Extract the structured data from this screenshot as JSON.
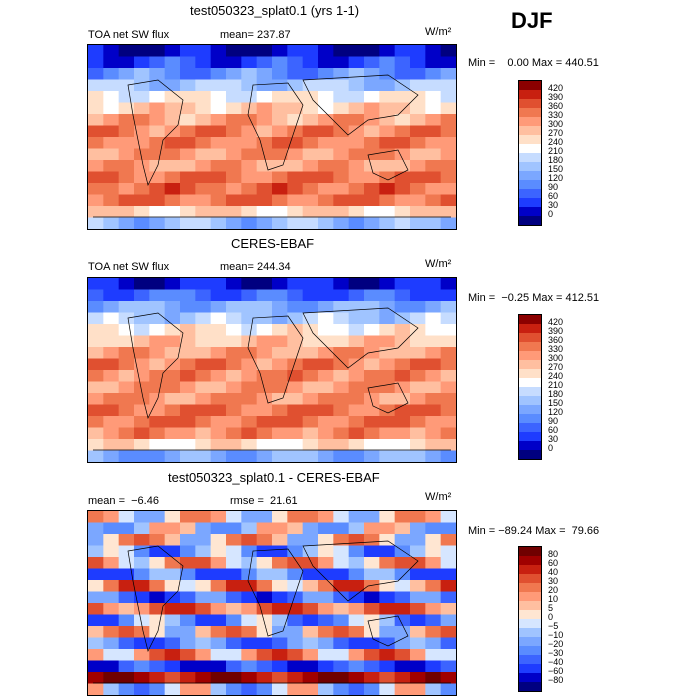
{
  "season": "DJF",
  "panels": [
    {
      "title": "test050323_splat0.1 (yrs 1-1)",
      "variable": "TOA net SW flux",
      "mean_label": "mean= 237.87",
      "units": "W/m²",
      "stats": "Min =    0.00 Max = 440.51",
      "colorbar_ticks": [
        "420",
        "390",
        "360",
        "330",
        "300",
        "270",
        "240",
        "210",
        "180",
        "150",
        "120",
        "90",
        "60",
        "30",
        "0"
      ]
    },
    {
      "title": "CERES-EBAF",
      "variable": "TOA net SW flux",
      "mean_label": "mean= 244.34",
      "units": "W/m²",
      "stats": "Min =  −0.25 Max = 412.51",
      "colorbar_ticks": [
        "420",
        "390",
        "360",
        "330",
        "300",
        "270",
        "240",
        "210",
        "180",
        "150",
        "120",
        "90",
        "60",
        "30",
        "0"
      ]
    },
    {
      "title": "test050323_splat0.1 - CERES-EBAF",
      "mean_label": "mean =  −6.46",
      "rmse_label": "rmse =  21.61",
      "units": "W/m²",
      "stats": "Min = −89.24 Max =  79.66",
      "colorbar_ticks": [
        "80",
        "60",
        "40",
        "30",
        "20",
        "10",
        "5",
        "0",
        "−5",
        "−10",
        "−20",
        "−30",
        "−40",
        "−60",
        "−80"
      ]
    }
  ],
  "colors": {
    "flux_scale": [
      "#000080",
      "#0000c8",
      "#1e3cff",
      "#3c64ff",
      "#5a8cff",
      "#7ba7ff",
      "#a0c4ff",
      "#c6dcff",
      "#ffffff",
      "#ffe0c8",
      "#ffbfa0",
      "#ff9a78",
      "#f07850",
      "#e05030",
      "#c82010",
      "#8b0000"
    ],
    "diff_scale": [
      "#000080",
      "#0000c8",
      "#1e3cff",
      "#3c64ff",
      "#5a8cff",
      "#7ba7ff",
      "#a0c4ff",
      "#d6e6ff",
      "#ffe6d2",
      "#ffbfa0",
      "#ff9a78",
      "#f07850",
      "#e05030",
      "#c82010",
      "#a00000",
      "#700000"
    ]
  },
  "chart_data": [
    {
      "type": "heatmap",
      "title": "test050323_splat0.1 (yrs 1-1)",
      "subtitle": "TOA net SW flux",
      "mean": 237.87,
      "min": 0.0,
      "max": 440.51,
      "units": "W/m²",
      "levels": [
        0,
        30,
        60,
        90,
        120,
        150,
        180,
        210,
        240,
        270,
        300,
        330,
        360,
        390,
        420
      ],
      "zonal_profile_north_to_south": [
        10,
        60,
        120,
        170,
        230,
        270,
        300,
        330,
        340,
        320,
        310,
        340,
        360,
        350,
        260,
        150
      ]
    },
    {
      "type": "heatmap",
      "title": "CERES-EBAF",
      "subtitle": "TOA net SW flux",
      "mean": 244.34,
      "min": -0.25,
      "max": 412.51,
      "units": "W/m²",
      "levels": [
        0,
        30,
        60,
        90,
        120,
        150,
        180,
        210,
        240,
        270,
        300,
        330,
        360,
        390,
        420
      ],
      "zonal_profile_north_to_south": [
        20,
        70,
        130,
        180,
        240,
        280,
        310,
        330,
        330,
        320,
        320,
        340,
        350,
        330,
        250,
        140
      ]
    },
    {
      "type": "heatmap",
      "title": "test050323_splat0.1 - CERES-EBAF",
      "mean": -6.46,
      "rmse": 21.61,
      "min": -89.24,
      "max": 79.66,
      "units": "W/m²",
      "levels": [
        -80,
        -60,
        -40,
        -30,
        -20,
        -10,
        -5,
        0,
        5,
        10,
        20,
        30,
        40,
        60,
        80
      ],
      "zonal_profile_north_to_south": [
        5,
        -5,
        10,
        -20,
        15,
        -30,
        20,
        -40,
        30,
        -20,
        10,
        -30,
        20,
        -50,
        60,
        -10
      ]
    }
  ]
}
